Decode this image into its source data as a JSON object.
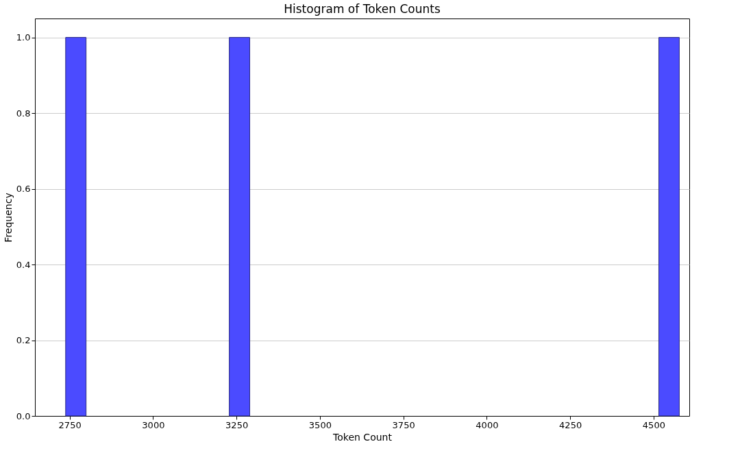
{
  "chart_data": {
    "type": "histogram",
    "title": "Histogram of Token Counts",
    "xlabel": "Token Count",
    "ylabel": "Frequency",
    "bins": [
      2738.0,
      2799.3,
      2860.6,
      2921.9,
      2983.2,
      3044.5,
      3105.8,
      3167.1,
      3228.4,
      3289.7,
      3351.0,
      3412.3,
      3473.6,
      3534.9,
      3596.2,
      3657.5,
      3718.8,
      3780.1,
      3841.4,
      3902.7,
      3964.0,
      4025.3,
      4086.6,
      4147.9,
      4209.2,
      4270.5,
      4331.8,
      4393.1,
      4454.4,
      4515.7,
      4577.0
    ],
    "values": [
      1,
      0,
      0,
      0,
      0,
      0,
      0,
      0,
      1,
      0,
      0,
      0,
      0,
      0,
      0,
      0,
      0,
      0,
      0,
      0,
      0,
      0,
      0,
      0,
      0,
      0,
      0,
      0,
      0,
      1
    ],
    "color": "#4b4bff",
    "xlim": [
      2646,
      4607
    ],
    "xticks": [
      2750,
      3000,
      3250,
      3500,
      3750,
      4000,
      4250,
      4500
    ],
    "ylim": [
      0,
      1.05
    ],
    "yticks": [
      {
        "value": 0,
        "label": "0.0"
      },
      {
        "value": 0.2,
        "label": "0.2"
      },
      {
        "value": 0.4,
        "label": "0.4"
      },
      {
        "value": 0.6,
        "label": "0.6"
      },
      {
        "value": 0.8,
        "label": "0.8"
      },
      {
        "value": 1.0,
        "label": "1.0"
      }
    ],
    "grid": "y"
  }
}
